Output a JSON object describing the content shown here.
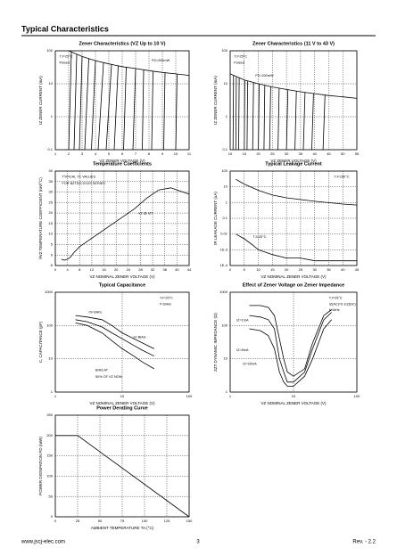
{
  "header": {
    "title": "Typical Characteristics"
  },
  "footer": {
    "url": "www.jscj-elec.com",
    "page": "3",
    "rev": "Rev. - 2.2"
  },
  "chart_data": [
    {
      "type": "line",
      "title": "Zener Characteristics (VZ Up to 10 V)",
      "x_label": "VZ ZENER VOLTAGE (V)",
      "y_label": "IZ ZENER CURRENT (mA)",
      "xlim": [
        1,
        11
      ],
      "xticks": [
        1,
        2,
        3,
        4,
        5,
        6,
        7,
        8,
        9,
        10,
        11
      ],
      "ylim": [
        0.1,
        100
      ],
      "yticks": [
        0.1,
        1,
        10,
        100
      ],
      "ylog": true,
      "grid": true,
      "color": "#000000",
      "annotations": [
        "TJ=25°C",
        "Pulsed",
        "PZ=200mW"
      ],
      "series": [
        {
          "x": [
            2.0,
            2.2
          ],
          "values": [
            0.1,
            91
          ]
        },
        {
          "x": [
            2.4,
            2.6
          ],
          "values": [
            0.1,
            77
          ]
        },
        {
          "x": [
            2.8,
            3.0
          ],
          "values": [
            0.1,
            67
          ]
        },
        {
          "x": [
            3.2,
            3.5
          ],
          "values": [
            0.1,
            57
          ]
        },
        {
          "x": [
            3.7,
            4.0
          ],
          "values": [
            0.1,
            50
          ]
        },
        {
          "x": [
            4.2,
            4.6
          ],
          "values": [
            0.1,
            43
          ]
        },
        {
          "x": [
            4.8,
            5.2
          ],
          "values": [
            0.1,
            38
          ]
        },
        {
          "x": [
            5.4,
            5.7
          ],
          "values": [
            0.1,
            35
          ]
        },
        {
          "x": [
            6.1,
            6.3
          ],
          "values": [
            0.1,
            32
          ]
        },
        {
          "x": [
            6.8,
            7.0
          ],
          "values": [
            0.1,
            29
          ]
        },
        {
          "x": [
            7.5,
            7.6
          ],
          "values": [
            0.1,
            26
          ]
        },
        {
          "x": [
            8.2,
            8.3
          ],
          "values": [
            0.1,
            24
          ]
        },
        {
          "x": [
            9.1,
            9.2
          ],
          "values": [
            0.1,
            22
          ]
        },
        {
          "x": [
            10,
            10.1
          ],
          "values": [
            0.1,
            20
          ]
        },
        {
          "x": [
            2,
            3,
            4,
            5,
            6,
            7,
            8,
            9,
            10,
            11
          ],
          "values": [
            100,
            67,
            50,
            40,
            33,
            29,
            25,
            22,
            20,
            18
          ]
        }
      ]
    },
    {
      "type": "line",
      "title": "Zener Characteristics (11 V to 43 V)",
      "x_label": "VZ ZENER VOLTAGE (V)",
      "y_label": "IZ ZENER CURRENT (mA)",
      "xlim": [
        10,
        55
      ],
      "xticks": [
        10,
        15,
        20,
        25,
        30,
        35,
        40,
        45,
        50,
        55
      ],
      "ylim": [
        0.1,
        100
      ],
      "yticks": [
        0.1,
        1,
        10,
        100
      ],
      "ylog": true,
      "grid": true,
      "color": "#000000",
      "annotations": [
        "TJ=25°C",
        "Pulsed",
        "PZ=200mW"
      ],
      "series": [
        {
          "x": [
            11,
            11.2
          ],
          "values": [
            0.1,
            18
          ]
        },
        {
          "x": [
            12,
            12.2
          ],
          "values": [
            0.1,
            16
          ]
        },
        {
          "x": [
            13,
            13.2
          ],
          "values": [
            0.1,
            15
          ]
        },
        {
          "x": [
            15,
            15.2
          ],
          "values": [
            0.1,
            13
          ]
        },
        {
          "x": [
            16,
            16.2
          ],
          "values": [
            0.1,
            12
          ]
        },
        {
          "x": [
            18,
            18.3
          ],
          "values": [
            0.1,
            11
          ]
        },
        {
          "x": [
            20,
            20.3
          ],
          "values": [
            0.1,
            10
          ]
        },
        {
          "x": [
            22,
            22.3
          ],
          "values": [
            0.1,
            9
          ]
        },
        {
          "x": [
            24,
            24.4
          ],
          "values": [
            0.1,
            8.2
          ]
        },
        {
          "x": [
            27,
            27.4
          ],
          "values": [
            0.1,
            7.3
          ]
        },
        {
          "x": [
            30,
            30.5
          ],
          "values": [
            0.1,
            6.6
          ]
        },
        {
          "x": [
            33,
            33.5
          ],
          "values": [
            0.1,
            6
          ]
        },
        {
          "x": [
            36,
            36.6
          ],
          "values": [
            0.1,
            5.5
          ]
        },
        {
          "x": [
            39,
            39.6
          ],
          "values": [
            0.1,
            5
          ]
        },
        {
          "x": [
            43,
            43.7
          ],
          "values": [
            0.1,
            4.6
          ]
        },
        {
          "x": [
            10,
            15,
            20,
            25,
            30,
            35,
            40,
            45,
            50,
            55
          ],
          "values": [
            20,
            13,
            10,
            8,
            6.7,
            5.7,
            5,
            4.4,
            4,
            3.6
          ]
        }
      ]
    },
    {
      "type": "line",
      "title": "Temperature Coefficients",
      "x_label": "VZ NOMINAL ZENER VOLTAGE (V)",
      "y_label": "θVZ TEMPERATURE COEFFICIENT (mV/°C)",
      "xlim": [
        0,
        44
      ],
      "xticks": [
        0,
        4,
        8,
        12,
        16,
        20,
        24,
        28,
        32,
        36,
        40,
        44
      ],
      "ylim": [
        -5,
        40
      ],
      "yticks": [
        -5,
        0,
        5,
        10,
        15,
        20,
        25,
        30,
        35,
        40
      ],
      "grid": true,
      "color": "#000000",
      "annotations": [
        "TYPICAL TC VALUES",
        "FOR BZT52CXXXS SERIES",
        "VZ @ IZT"
      ],
      "series": [
        {
          "x": [
            2,
            3,
            4,
            5,
            6,
            8,
            10,
            14,
            18,
            22,
            26,
            30,
            34,
            38,
            40,
            44
          ],
          "values": [
            -2,
            -2.5,
            -2,
            -1,
            1,
            4,
            6,
            10,
            14,
            18,
            22,
            27,
            31,
            32,
            31,
            29
          ]
        }
      ]
    },
    {
      "type": "line",
      "title": "Typical Leakage Current",
      "x_label": "VZ NOMINAL ZENER VOLTAGE (V)",
      "y_label": "IR LEAKAGE CURRENT (uA)",
      "xlim": [
        0,
        45
      ],
      "xticks": [
        0,
        5,
        10,
        15,
        20,
        25,
        30,
        35,
        40,
        45
      ],
      "ylim": [
        0.0001,
        100
      ],
      "ylog": true,
      "yticks": [
        {
          "value": 0.0001,
          "label": "1E-4"
        },
        {
          "value": 0.001,
          "label": "1E-3"
        },
        0.01,
        0.1,
        1,
        10,
        100
      ],
      "grid": true,
      "color": "#000000",
      "annotations": [
        "TJ=150°C",
        "TJ=25°C"
      ],
      "series": [
        {
          "x": [
            2,
            5,
            10,
            15,
            20,
            30,
            40,
            45
          ],
          "values": [
            30,
            15,
            6,
            3,
            2,
            1.2,
            0.8,
            0.7
          ]
        },
        {
          "x": [
            2,
            5,
            8,
            10,
            15,
            20,
            25,
            30,
            40,
            45
          ],
          "values": [
            0.01,
            0.005,
            0.002,
            0.001,
            0.0005,
            0.0003,
            0.0003,
            0.0002,
            0.0002,
            0.0002
          ]
        }
      ]
    },
    {
      "type": "line",
      "title": "Typical Capacitance",
      "x_label": "VZ NOMINAL ZENER VOLTAGE (V)",
      "y_label": "C, CAPACITANCE (pF)",
      "xlim": [
        1,
        100
      ],
      "xticks": [
        1,
        10,
        100
      ],
      "xlog": true,
      "ylim": [
        1,
        1000
      ],
      "yticks": [
        1,
        10,
        100,
        1000
      ],
      "ylog": true,
      "grid": true,
      "color": "#000000",
      "annotations": [
        "TJ=25°C",
        "f=1MHz",
        "0V BIAS",
        "1V BIAS",
        "BIAS AT",
        "50% OF VZ NOM"
      ],
      "series": [
        {
          "x": [
            2,
            3,
            5,
            7,
            10,
            15,
            20,
            30
          ],
          "values": [
            200,
            180,
            150,
            100,
            60,
            40,
            30,
            20
          ]
        },
        {
          "x": [
            2,
            3,
            5,
            7,
            10,
            15,
            20,
            30
          ],
          "values": [
            150,
            130,
            90,
            60,
            40,
            25,
            18,
            12
          ]
        },
        {
          "x": [
            2,
            3,
            5,
            7,
            10,
            15,
            20,
            30
          ],
          "values": [
            120,
            100,
            60,
            35,
            20,
            12,
            8,
            5
          ]
        }
      ]
    },
    {
      "type": "line",
      "title": "Effect of Zener Voltage on Zener Impedance",
      "x_label": "VZ NOMINAL ZENER VOLTAGE (V)",
      "y_label": "ZZT DYNAMIC IMPEDANCE (Ω)",
      "xlim": [
        1,
        100
      ],
      "xticks": [
        1,
        10,
        100
      ],
      "xlog": true,
      "ylim": [
        1,
        1000
      ],
      "yticks": [
        1,
        10,
        100,
        1000
      ],
      "ylog": true,
      "grid": true,
      "color": "#000000",
      "annotations": [
        "TJ=25°C",
        "IZ(AC)=0.1IZ(DC)",
        "f=1kHz",
        "IZ=1mA",
        "IZ=5mA",
        "IZ=20mA"
      ],
      "series": [
        {
          "x": [
            2,
            3,
            4,
            5,
            6,
            7,
            8,
            10,
            15,
            20,
            30,
            40
          ],
          "values": [
            400,
            400,
            350,
            200,
            40,
            10,
            4,
            3,
            5,
            30,
            200,
            300
          ]
        },
        {
          "x": [
            2,
            3,
            4,
            5,
            6,
            7,
            8,
            10,
            15,
            20,
            30,
            40
          ],
          "values": [
            200,
            180,
            150,
            80,
            10,
            4,
            2,
            2,
            4,
            20,
            150,
            250
          ]
        },
        {
          "x": [
            2,
            3,
            4,
            5,
            6,
            7,
            8,
            10,
            15,
            20,
            30,
            40
          ],
          "values": [
            80,
            70,
            50,
            20,
            4,
            2,
            1.5,
            1.5,
            3,
            10,
            80,
            150
          ]
        }
      ]
    },
    {
      "type": "line",
      "title": "Power Derating Curve",
      "x_label": "AMBIENT TEMPERATURE TA (°C)",
      "y_label": "POWER DISSIPATION PD (mW)",
      "xlim": [
        0,
        150
      ],
      "xticks": [
        0,
        25,
        50,
        75,
        100,
        125,
        150
      ],
      "ylim": [
        0,
        250
      ],
      "yticks": [
        0,
        50,
        100,
        150,
        200,
        250
      ],
      "grid": true,
      "color": "#000000",
      "series": [
        {
          "x": [
            0,
            25,
            150
          ],
          "values": [
            200,
            200,
            0
          ]
        }
      ]
    }
  ]
}
